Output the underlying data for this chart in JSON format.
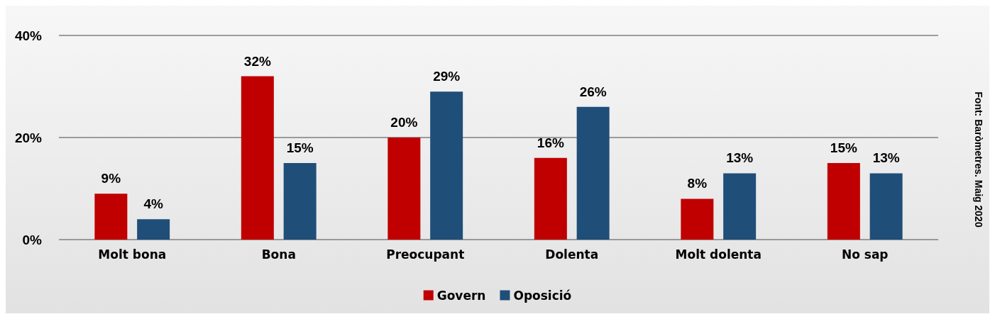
{
  "chart_data": {
    "type": "bar",
    "categories": [
      "Molt bona",
      "Bona",
      "Preocupant",
      "Dolenta",
      "Molt dolenta",
      "No sap"
    ],
    "series": [
      {
        "name": "Govern",
        "color": "#c00000",
        "values": [
          9,
          32,
          20,
          16,
          8,
          15
        ],
        "value_labels": [
          "9%",
          "32%",
          "20%",
          "16%",
          "8%",
          "15%"
        ]
      },
      {
        "name": "Oposició",
        "color": "#1f4e79",
        "values": [
          4,
          15,
          29,
          26,
          13,
          13
        ],
        "value_labels": [
          "4%",
          "15%",
          "29%",
          "26%",
          "13%",
          "13%"
        ]
      }
    ],
    "ylim": [
      0,
      40
    ],
    "yticks": [
      {
        "value": 0,
        "label": "0%"
      },
      {
        "value": 20,
        "label": "20%"
      },
      {
        "value": 40,
        "label": "40%"
      }
    ],
    "grid": "y",
    "legend": "bottom",
    "annotations": [
      "Font: Baròmetres. Maig 2020"
    ]
  }
}
